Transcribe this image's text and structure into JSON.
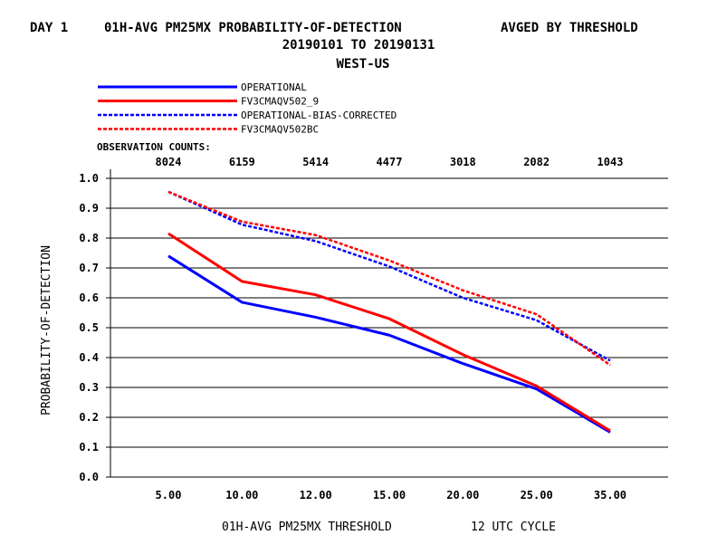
{
  "header": {
    "day_label": "DAY 1",
    "title": "01H-AVG PM25MX PROBABILITY-OF-DETECTION",
    "avg_label": "AVGED BY THRESHOLD",
    "date_range": "20190101 TO 20190131",
    "region": "WEST-US"
  },
  "observation_counts_label": "OBSERVATION COUNTS:",
  "footer": {
    "xlabel": "01H-AVG PM25MX THRESHOLD",
    "cycle": "12 UTC CYCLE"
  },
  "chart_data": {
    "type": "line",
    "title": "01H-AVG PM25MX PROBABILITY-OF-DETECTION",
    "xlabel": "01H-AVG PM25MX THRESHOLD",
    "ylabel": "PROBABILITY-OF-DETECTION",
    "categories": [
      "5.00",
      "10.00",
      "12.00",
      "15.00",
      "20.00",
      "25.00",
      "35.00"
    ],
    "observation_counts": [
      "8024",
      "6159",
      "5414",
      "4477",
      "3018",
      "2082",
      "1043"
    ],
    "ylim": [
      0.0,
      1.0
    ],
    "yticks": [
      "0.0",
      "0.1",
      "0.2",
      "0.3",
      "0.4",
      "0.5",
      "0.6",
      "0.7",
      "0.8",
      "0.9",
      "1.0"
    ],
    "grid": "horizontal",
    "legend_position": "top-left",
    "series": [
      {
        "name": "OPERATIONAL",
        "color": "#0000ff",
        "style": "solid",
        "values": [
          0.74,
          0.585,
          0.535,
          0.475,
          0.38,
          0.295,
          0.15
        ]
      },
      {
        "name": "FV3CMAQV502_9",
        "color": "#ff0000",
        "style": "solid",
        "values": [
          0.815,
          0.655,
          0.61,
          0.53,
          0.41,
          0.305,
          0.155
        ]
      },
      {
        "name": "OPERATIONAL-BIAS-CORRECTED",
        "color": "#0000ff",
        "style": "dashed",
        "values": [
          0.955,
          0.845,
          0.79,
          0.705,
          0.6,
          0.525,
          0.39
        ]
      },
      {
        "name": "FV3CMAQV502BC",
        "color": "#ff0000",
        "style": "dashed",
        "values": [
          0.955,
          0.855,
          0.81,
          0.725,
          0.625,
          0.545,
          0.375
        ]
      }
    ]
  }
}
